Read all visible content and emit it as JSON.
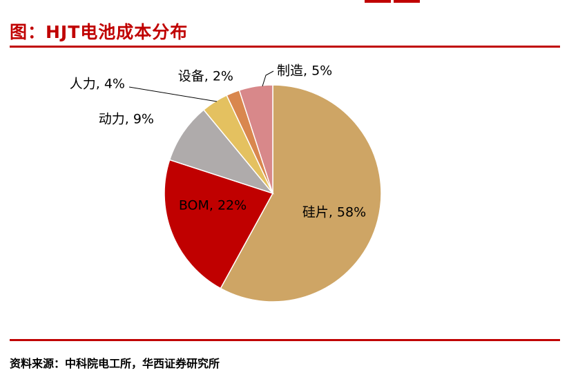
{
  "header": {
    "title": "图：HJT电池成本分布"
  },
  "footer": {
    "source": "资料来源：中科院电工所，华西证券研究所"
  },
  "chart_data": {
    "type": "pie",
    "title": "图：HJT电池成本分布",
    "start": "12 o'clock",
    "direction": "clockwise",
    "slices": [
      {
        "label": "硅片, 58%",
        "value": 58,
        "color": "#cea565"
      },
      {
        "label": "BOM, 22%",
        "value": 22,
        "color": "#c00000"
      },
      {
        "label": "动力, 9%",
        "value": 9,
        "color": "#afabab"
      },
      {
        "label": "人力, 4%",
        "value": 4,
        "color": "#e4c160"
      },
      {
        "label": "设备, 2%",
        "value": 2,
        "color": "#d9874e"
      },
      {
        "label": "制造, 5%",
        "value": 5,
        "color": "#d8888a"
      }
    ]
  }
}
